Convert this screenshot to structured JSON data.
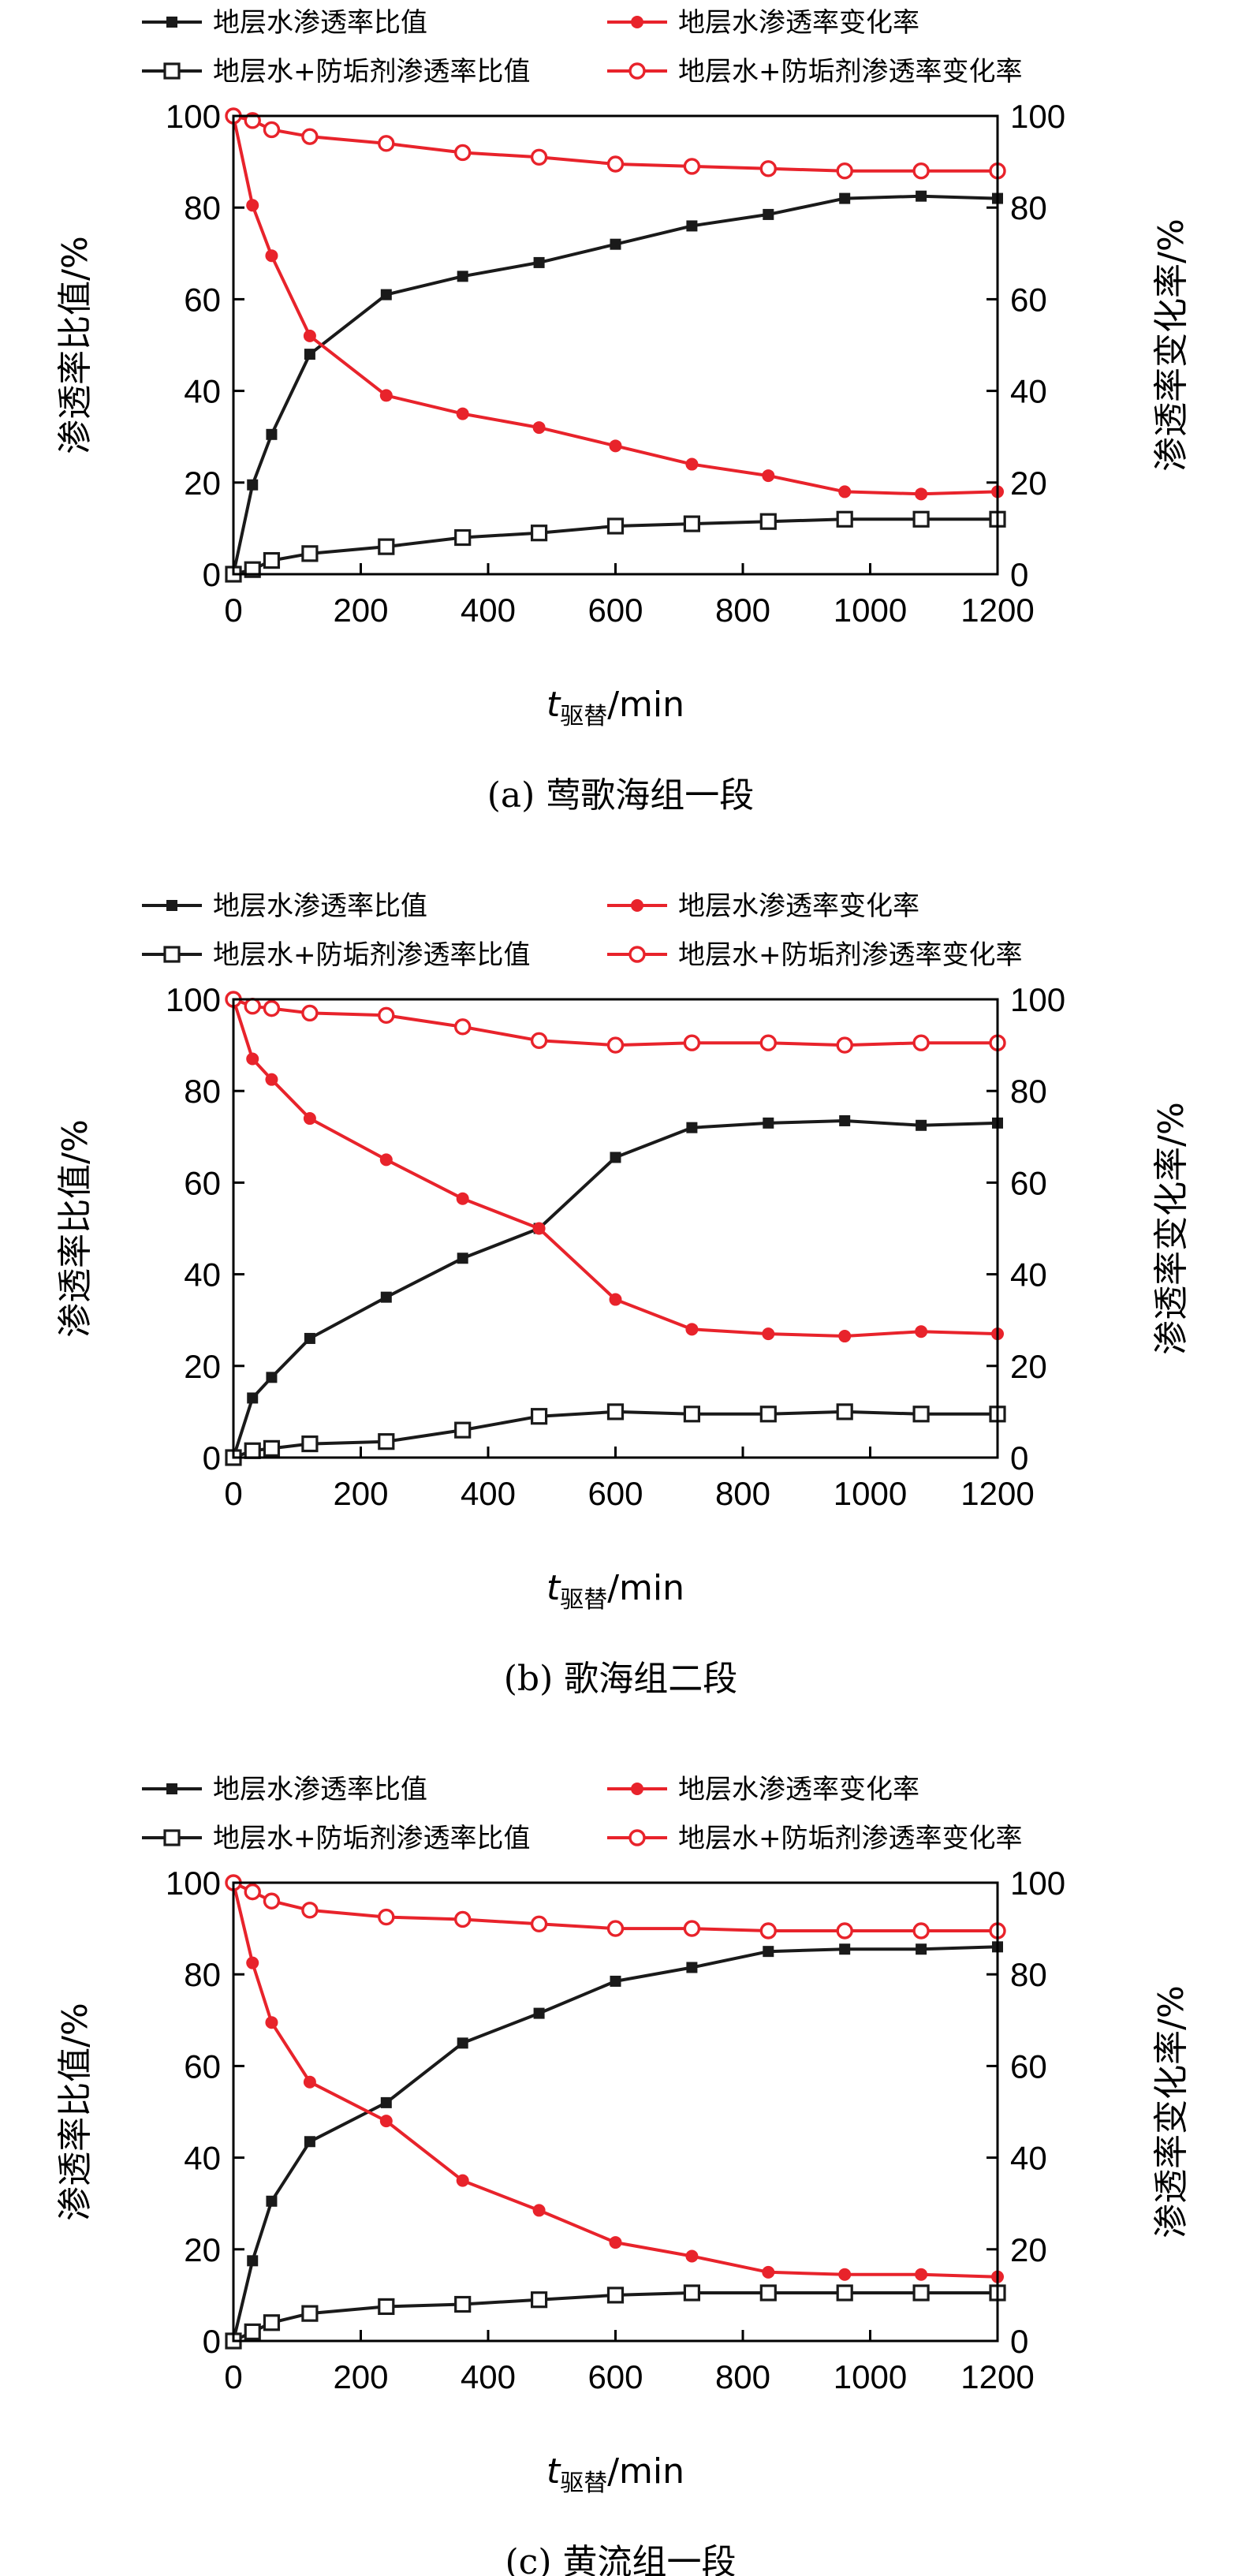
{
  "legend": {
    "s1": "地层水渗透率比值",
    "s2": "地层水渗透率变化率",
    "s3": "地层水+防垢剂渗透率比值",
    "s4": "地层水+防垢剂渗透率变化率"
  },
  "colors": {
    "black": "#1a1a1a",
    "red": "#e8232b"
  },
  "chart_data": [
    {
      "type": "line",
      "caption": "(a) 莺歌海组一段",
      "xlabel_var": "t",
      "xlabel_sub": "驱替",
      "xlabel_unit": "/min",
      "ylabel": "渗透率比值/%",
      "y2label": "渗透率变化率/%",
      "xlim": [
        0,
        1200
      ],
      "ylim": [
        0,
        100
      ],
      "y2lim": [
        0,
        100
      ],
      "xticks": [
        0,
        200,
        400,
        600,
        800,
        1000,
        1200
      ],
      "yticks": [
        0,
        20,
        40,
        60,
        80,
        100
      ],
      "x": [
        0,
        30,
        60,
        120,
        240,
        360,
        480,
        600,
        720,
        840,
        960,
        1080,
        1200
      ],
      "series": [
        {
          "name": "地层水渗透率比值",
          "axis": "left",
          "values": [
            0,
            19.5,
            30.5,
            48,
            61,
            65,
            68,
            72,
            76,
            78.5,
            82,
            82.5,
            82
          ]
        },
        {
          "name": "地层水渗透率变化率",
          "axis": "right",
          "values": [
            100,
            80.5,
            69.5,
            52,
            39,
            35,
            32,
            28,
            24,
            21.5,
            18,
            17.5,
            18
          ]
        },
        {
          "name": "地层水+防垢剂渗透率比值",
          "axis": "left",
          "values": [
            0,
            1,
            3,
            4.5,
            6,
            8,
            9,
            10.5,
            11,
            11.5,
            12,
            12,
            12
          ]
        },
        {
          "name": "地层水+防垢剂渗透率变化率",
          "axis": "right",
          "values": [
            100,
            99,
            97,
            95.5,
            94,
            92,
            91,
            89.5,
            89,
            88.5,
            88,
            88,
            88
          ]
        }
      ]
    },
    {
      "type": "line",
      "caption": "(b) 歌海组二段",
      "xlabel_var": "t",
      "xlabel_sub": "驱替",
      "xlabel_unit": "/min",
      "ylabel": "渗透率比值/%",
      "y2label": "渗透率变化率/%",
      "xlim": [
        0,
        1200
      ],
      "ylim": [
        0,
        100
      ],
      "y2lim": [
        0,
        100
      ],
      "xticks": [
        0,
        200,
        400,
        600,
        800,
        1000,
        1200
      ],
      "yticks": [
        0,
        20,
        40,
        60,
        80,
        100
      ],
      "x": [
        0,
        30,
        60,
        120,
        240,
        360,
        480,
        600,
        720,
        840,
        960,
        1080,
        1200
      ],
      "series": [
        {
          "name": "地层水渗透率比值",
          "axis": "left",
          "values": [
            0,
            13,
            17.5,
            26,
            35,
            43.5,
            50,
            65.5,
            72,
            73,
            73.5,
            72.5,
            73
          ]
        },
        {
          "name": "地层水渗透率变化率",
          "axis": "right",
          "values": [
            100,
            87,
            82.5,
            74,
            65,
            56.5,
            50,
            34.5,
            28,
            27,
            26.5,
            27.5,
            27
          ]
        },
        {
          "name": "地层水+防垢剂渗透率比值",
          "axis": "left",
          "values": [
            0,
            1.5,
            2,
            3,
            3.5,
            6,
            9,
            10,
            9.5,
            9.5,
            10,
            9.5,
            9.5
          ]
        },
        {
          "name": "地层水+防垢剂渗透率变化率",
          "axis": "right",
          "values": [
            100,
            98.5,
            98,
            97,
            96.5,
            94,
            91,
            90,
            90.5,
            90.5,
            90,
            90.5,
            90.5
          ]
        }
      ]
    },
    {
      "type": "line",
      "caption": "(c) 黄流组一段",
      "xlabel_var": "t",
      "xlabel_sub": "驱替",
      "xlabel_unit": "/min",
      "ylabel": "渗透率比值/%",
      "y2label": "渗透率变化率/%",
      "xlim": [
        0,
        1200
      ],
      "ylim": [
        0,
        100
      ],
      "y2lim": [
        0,
        100
      ],
      "xticks": [
        0,
        200,
        400,
        600,
        800,
        1000,
        1200
      ],
      "yticks": [
        0,
        20,
        40,
        60,
        80,
        100
      ],
      "x": [
        0,
        30,
        60,
        120,
        240,
        360,
        480,
        600,
        720,
        840,
        960,
        1080,
        1200
      ],
      "series": [
        {
          "name": "地层水渗透率比值",
          "axis": "left",
          "values": [
            0,
            17.5,
            30.5,
            43.5,
            52,
            65,
            71.5,
            78.5,
            81.5,
            85,
            85.5,
            85.5,
            86
          ]
        },
        {
          "name": "地层水渗透率变化率",
          "axis": "right",
          "values": [
            100,
            82.5,
            69.5,
            56.5,
            48,
            35,
            28.5,
            21.5,
            18.5,
            15,
            14.5,
            14.5,
            14
          ]
        },
        {
          "name": "地层水+防垢剂渗透率比值",
          "axis": "left",
          "values": [
            0,
            2,
            4,
            6,
            7.5,
            8,
            9,
            10,
            10.5,
            10.5,
            10.5,
            10.5,
            10.5
          ]
        },
        {
          "name": "地层水+防垢剂渗透率变化率",
          "axis": "right",
          "values": [
            100,
            98,
            96,
            94,
            92.5,
            92,
            91,
            90,
            90,
            89.5,
            89.5,
            89.5,
            89.5
          ]
        }
      ]
    }
  ]
}
